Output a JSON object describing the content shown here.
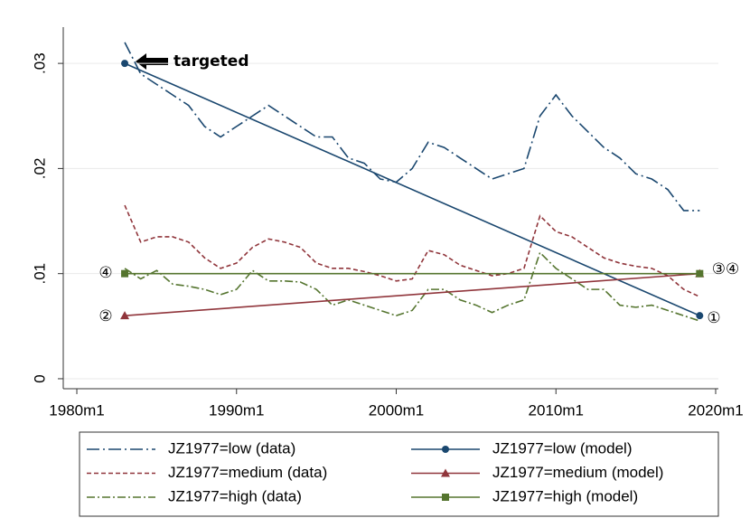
{
  "chart_data": {
    "type": "line",
    "xlim": [
      1979.15,
      2020.17
    ],
    "xticks": [
      {
        "value": 1980,
        "label": "1980m1"
      },
      {
        "value": 1990,
        "label": "1990m1"
      },
      {
        "value": 2000,
        "label": "2000m1"
      },
      {
        "value": 2010,
        "label": "2010m1"
      },
      {
        "value": 2020,
        "label": "2020m1"
      }
    ],
    "ylim": [
      -0.00095,
      0.03345
    ],
    "yticks": [
      0,
      {
        "value": 0.01,
        "label": ".01"
      },
      {
        "value": 0.02,
        "label": ".02"
      },
      {
        "value": 0.03,
        "label": ".03"
      }
    ],
    "grid": true,
    "annotations": [
      "targeted",
      "④",
      "②",
      "③④",
      "①"
    ],
    "series": [
      {
        "name": "JZ1977=low (data)",
        "color": "#1a476f",
        "line_style": "longdash-dot",
        "x": [
          1983,
          1984,
          1985,
          1986,
          1987,
          1988,
          1989,
          1990,
          1991,
          1992,
          1993,
          1994,
          1995,
          1996,
          1997,
          1998,
          1999,
          2000,
          2001,
          2002,
          2003,
          2004,
          2005,
          2006,
          2007,
          2008,
          2009,
          2010,
          2011,
          2012,
          2013,
          2014,
          2015,
          2016,
          2017,
          2018,
          2019
        ],
        "values": [
          0.032,
          0.029,
          0.028,
          0.027,
          0.026,
          0.024,
          0.023,
          0.024,
          0.025,
          0.026,
          0.025,
          0.024,
          0.023,
          0.023,
          0.021,
          0.0205,
          0.019,
          0.0187,
          0.02,
          0.0225,
          0.022,
          0.021,
          0.02,
          0.019,
          0.0195,
          0.02,
          0.025,
          0.027,
          0.025,
          0.0235,
          0.022,
          0.021,
          0.0195,
          0.019,
          0.018,
          0.016,
          0.016
        ]
      },
      {
        "name": "JZ1977=medium (data)",
        "color": "#90353b",
        "line_style": "dash",
        "x": [
          1983,
          1984,
          1985,
          1986,
          1987,
          1988,
          1989,
          1990,
          1991,
          1992,
          1993,
          1994,
          1995,
          1996,
          1997,
          1998,
          1999,
          2000,
          2001,
          2002,
          2003,
          2004,
          2005,
          2006,
          2007,
          2008,
          2009,
          2010,
          2011,
          2012,
          2013,
          2014,
          2015,
          2016,
          2017,
          2018,
          2019
        ],
        "values": [
          0.0165,
          0.013,
          0.0135,
          0.0135,
          0.013,
          0.0115,
          0.0105,
          0.011,
          0.0125,
          0.0133,
          0.013,
          0.0125,
          0.011,
          0.0105,
          0.0105,
          0.0102,
          0.0098,
          0.0093,
          0.0095,
          0.0122,
          0.0118,
          0.0108,
          0.0103,
          0.0098,
          0.01,
          0.0105,
          0.0155,
          0.014,
          0.0135,
          0.0125,
          0.0115,
          0.011,
          0.0107,
          0.0105,
          0.0098,
          0.0085,
          0.0078
        ]
      },
      {
        "name": "JZ1977=high (data)",
        "color": "#55752f",
        "line_style": "dash-dot",
        "x": [
          1983,
          1984,
          1985,
          1986,
          1987,
          1988,
          1989,
          1990,
          1991,
          1992,
          1993,
          1994,
          1995,
          1996,
          1997,
          1998,
          1999,
          2000,
          2001,
          2002,
          2003,
          2004,
          2005,
          2006,
          2007,
          2008,
          2009,
          2010,
          2011,
          2012,
          2013,
          2014,
          2015,
          2016,
          2017,
          2018,
          2019
        ],
        "values": [
          0.0105,
          0.0095,
          0.0103,
          0.009,
          0.0088,
          0.0085,
          0.008,
          0.0085,
          0.0103,
          0.0093,
          0.0093,
          0.0092,
          0.0085,
          0.007,
          0.0075,
          0.007,
          0.0065,
          0.006,
          0.0065,
          0.0085,
          0.0085,
          0.0075,
          0.007,
          0.0063,
          0.007,
          0.0075,
          0.012,
          0.0105,
          0.0095,
          0.0085,
          0.0085,
          0.007,
          0.0068,
          0.007,
          0.0065,
          0.006,
          0.0055
        ]
      },
      {
        "name": "JZ1977=low (model)",
        "color": "#1a476f",
        "line_style": "solid",
        "marker": "circle",
        "x": [
          1983,
          2019
        ],
        "values": [
          0.03,
          0.006
        ]
      },
      {
        "name": "JZ1977=medium (model)",
        "color": "#90353b",
        "line_style": "solid",
        "marker": "triangle",
        "x": [
          1983,
          2019
        ],
        "values": [
          0.006,
          0.01
        ]
      },
      {
        "name": "JZ1977=high (model)",
        "color": "#55752f",
        "line_style": "solid",
        "marker": "square",
        "x": [
          1983,
          2019
        ],
        "values": [
          0.01,
          0.01
        ]
      }
    ]
  }
}
